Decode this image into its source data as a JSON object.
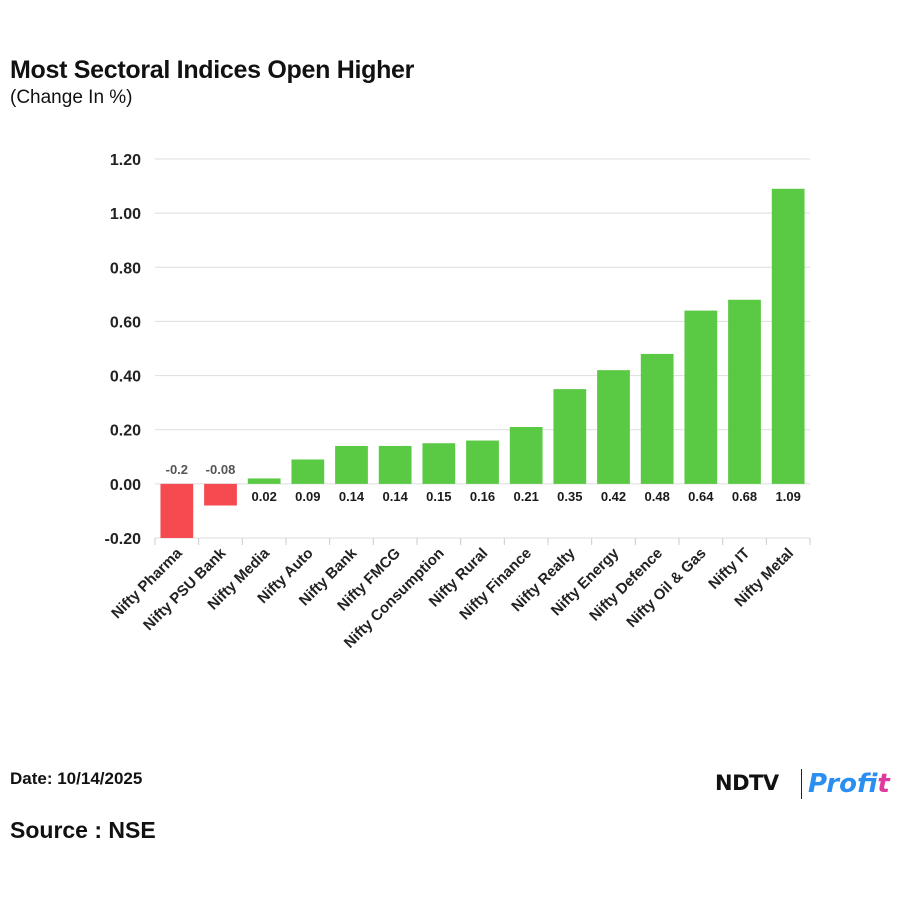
{
  "title": "Most Sectoral Indices Open Higher",
  "subtitle": "(Change In %)",
  "footer": {
    "date": "Date: 10/14/2025",
    "source": "Source : NSE"
  },
  "logo": {
    "brand": "NDTV",
    "product_blue": "Prof",
    "product_pink": "it"
  },
  "colors": {
    "positive": "#5ac943",
    "negative": "#f54a4f",
    "grid": "#dedede",
    "axis_text": "#222222",
    "label_text": "#222222"
  },
  "chart_data": {
    "type": "bar",
    "title": "Most Sectoral Indices Open Higher",
    "subtitle": "(Change In %)",
    "xlabel": "",
    "ylabel": "",
    "categories": [
      "Nifty Pharma",
      "Nifty PSU Bank",
      "Nifty Media",
      "Nifty Auto",
      "Nifty Bank",
      "Nifty FMCG",
      "Nifty Consumption",
      "Nifty Rural",
      "Nifty Finance",
      "Nifty Realty",
      "Nifty Energy",
      "Nifty Defence",
      "Nifty Oil & Gas",
      "Nifty IT",
      "Nifty Metal"
    ],
    "values": [
      -0.2,
      -0.08,
      0.02,
      0.09,
      0.14,
      0.14,
      0.15,
      0.16,
      0.21,
      0.35,
      0.42,
      0.48,
      0.64,
      0.68,
      1.09
    ],
    "value_labels": [
      "-0.2",
      "-0.08",
      "0.02",
      "0.09",
      "0.14",
      "0.14",
      "0.15",
      "0.16",
      "0.21",
      "0.35",
      "0.42",
      "0.48",
      "0.64",
      "0.68",
      "1.09"
    ],
    "ylim": [
      -0.2,
      1.2
    ],
    "yticks": [
      -0.2,
      0,
      0.2,
      0.4,
      0.6,
      0.8,
      1.0,
      1.2
    ],
    "ytick_labels": [
      "-0.20",
      "0.00",
      "0.20",
      "0.40",
      "0.60",
      "0.80",
      "1.00",
      "1.20"
    ],
    "grid": true,
    "legend": "none"
  }
}
